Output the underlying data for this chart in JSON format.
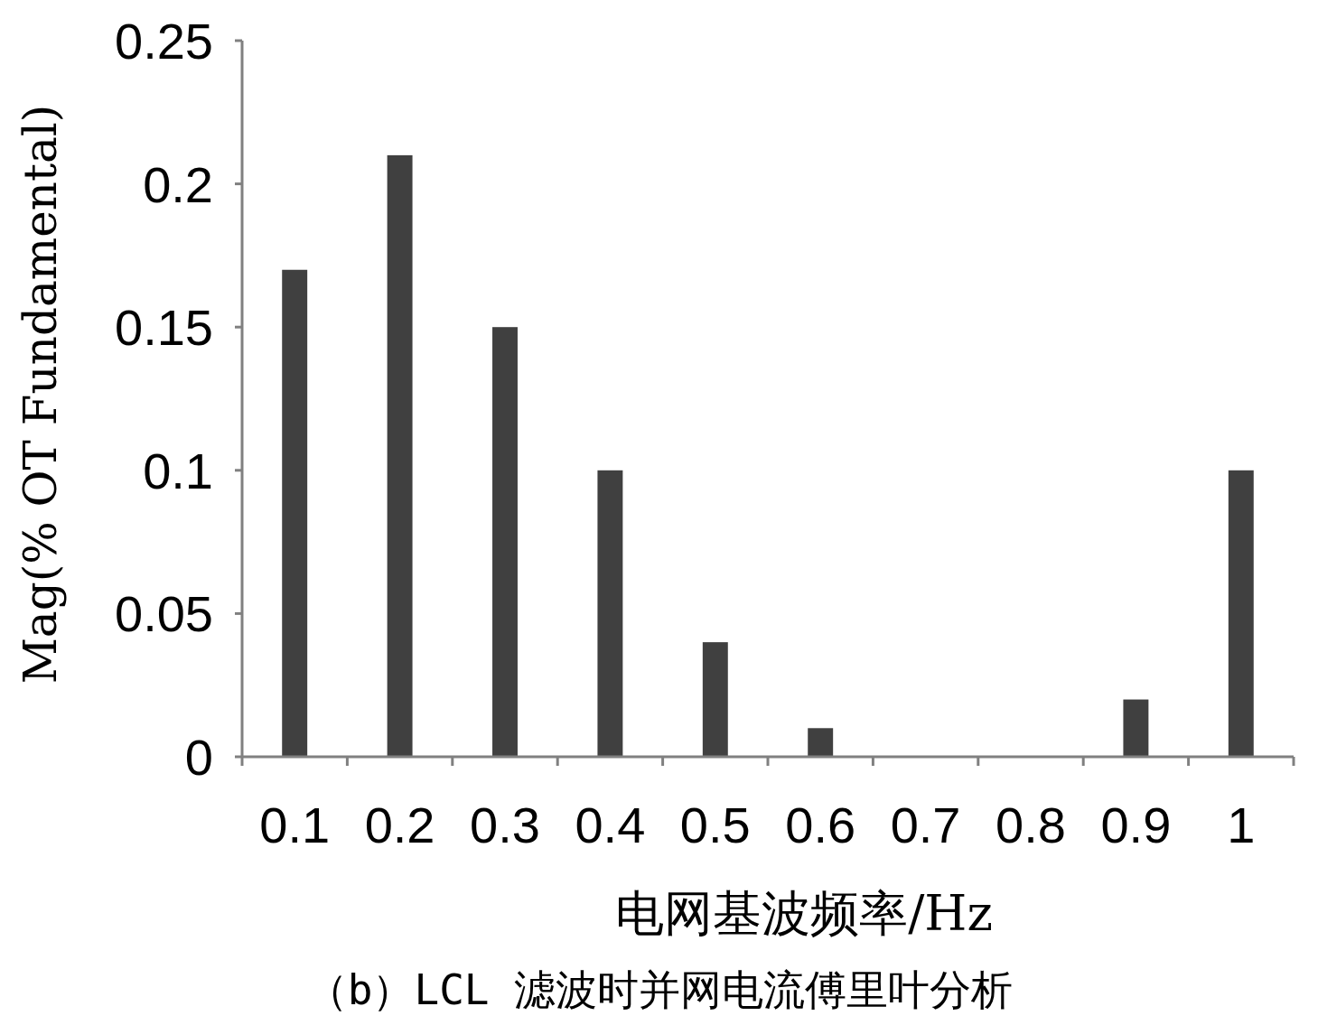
{
  "chart_data": {
    "type": "bar",
    "categories": [
      "0.1",
      "0.2",
      "0.3",
      "0.4",
      "0.5",
      "0.6",
      "0.7",
      "0.8",
      "0.9",
      "1"
    ],
    "values": [
      0.17,
      0.21,
      0.15,
      0.1,
      0.04,
      0.01,
      0,
      0,
      0.02,
      0.1
    ],
    "color": "#404040",
    "ylim": [
      0,
      0.25
    ],
    "yticks": [
      0,
      0.05,
      0.1,
      0.15,
      0.2,
      0.25
    ],
    "xlabel": "电网基波频率/Hz",
    "ylabel": "Mag(% OT Fundamental)",
    "annotations": [
      "（b）LCL 滤波时并网电流傅里叶分析"
    ]
  }
}
